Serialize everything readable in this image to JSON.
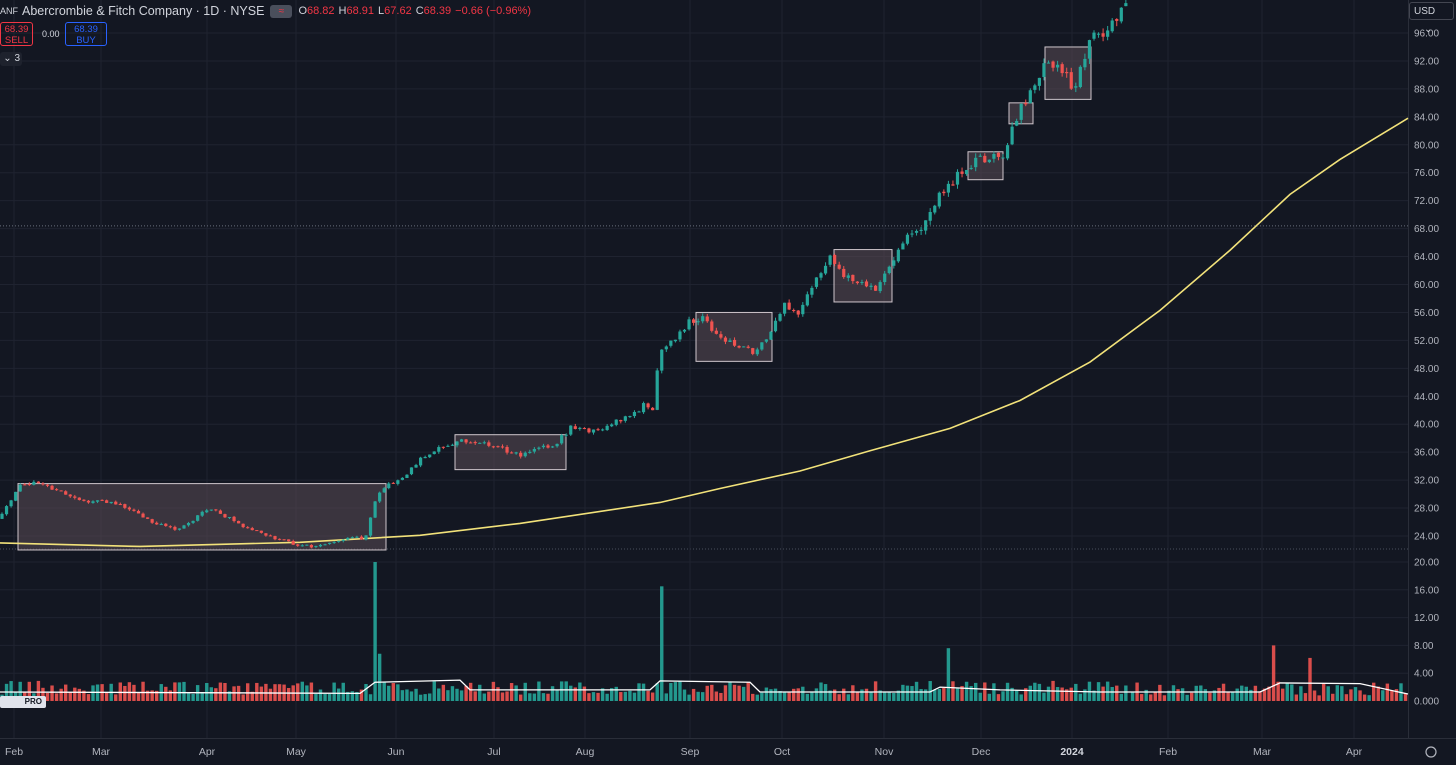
{
  "header": {
    "symbol_icon": "ANF",
    "title": "Abercrombie & Fitch Company · 1D · NYSE",
    "flag_glyph": "≈",
    "ohlc": [
      {
        "key": "O",
        "value": "68.82"
      },
      {
        "key": "H",
        "value": "68.91"
      },
      {
        "key": "L",
        "value": "67.62"
      },
      {
        "key": "C",
        "value": "68.39"
      }
    ],
    "change": "−0.66 (−0.96%)"
  },
  "trade": {
    "sell_price": "68.39",
    "sell_label": "SELL",
    "spread": "0.00",
    "buy_price": "68.39",
    "buy_label": "BUY"
  },
  "indicators_count": "3",
  "currency_button": "USD",
  "logo_text": "PRO",
  "chart_data": {
    "type": "candlestick",
    "price_axis": {
      "ticks": [
        "96.00",
        "92.00",
        "88.00",
        "84.00",
        "80.00",
        "76.00",
        "72.00",
        "68.00",
        "64.00",
        "60.00",
        "56.00",
        "52.00",
        "48.00",
        "44.00",
        "40.00",
        "36.00",
        "32.00",
        "28.00",
        "24.00"
      ],
      "range": [
        21.5,
        100
      ]
    },
    "volume_axis": {
      "ticks": [
        "20.00",
        "16.00",
        "12.00",
        "8.00",
        "4.00",
        "0.000"
      ],
      "range": [
        0,
        20
      ]
    },
    "last_price": 68.39,
    "x_labels": [
      "Feb",
      "Mar",
      "Apr",
      "May",
      "Jun",
      "Jul",
      "Aug",
      "Sep",
      "Oct",
      "Nov",
      "Dec",
      "2024",
      "Feb",
      "Mar",
      "Apr"
    ],
    "price_path": [
      [
        0,
        26.5
      ],
      [
        20,
        31.5
      ],
      [
        40,
        31.5
      ],
      [
        60,
        30.5
      ],
      [
        80,
        29
      ],
      [
        100,
        29
      ],
      [
        120,
        28.5
      ],
      [
        140,
        27
      ],
      [
        160,
        25.5
      ],
      [
        180,
        25
      ],
      [
        200,
        27
      ],
      [
        210,
        28
      ],
      [
        230,
        26.5
      ],
      [
        250,
        25
      ],
      [
        270,
        24
      ],
      [
        290,
        23
      ],
      [
        310,
        22.5
      ],
      [
        330,
        23
      ],
      [
        350,
        24
      ],
      [
        365,
        23.5
      ],
      [
        375,
        29
      ],
      [
        385,
        31
      ],
      [
        400,
        32
      ],
      [
        420,
        35
      ],
      [
        440,
        36.5
      ],
      [
        460,
        37.5
      ],
      [
        480,
        37.5
      ],
      [
        500,
        36.5
      ],
      [
        520,
        35.5
      ],
      [
        540,
        36.5
      ],
      [
        555,
        37
      ],
      [
        570,
        39.5
      ],
      [
        590,
        39
      ],
      [
        610,
        40
      ],
      [
        630,
        41
      ],
      [
        645,
        43
      ],
      [
        652,
        41
      ],
      [
        660,
        51
      ],
      [
        675,
        52
      ],
      [
        690,
        55
      ],
      [
        705,
        55
      ],
      [
        720,
        52.5
      ],
      [
        740,
        51
      ],
      [
        755,
        50
      ],
      [
        770,
        53
      ],
      [
        785,
        57
      ],
      [
        800,
        56
      ],
      [
        815,
        61
      ],
      [
        830,
        64
      ],
      [
        845,
        61
      ],
      [
        860,
        60
      ],
      [
        875,
        59.5
      ],
      [
        890,
        63
      ],
      [
        905,
        67
      ],
      [
        920,
        67.5
      ],
      [
        935,
        72
      ],
      [
        950,
        74
      ],
      [
        965,
        77
      ],
      [
        985,
        78
      ],
      [
        1005,
        79
      ],
      [
        1020,
        85
      ],
      [
        1035,
        88
      ],
      [
        1045,
        92
      ],
      [
        1060,
        91
      ],
      [
        1075,
        88
      ],
      [
        1090,
        95
      ],
      [
        1110,
        97
      ],
      [
        1128,
        100
      ]
    ],
    "sma_path": [
      [
        0,
        23
      ],
      [
        140,
        22.5
      ],
      [
        300,
        23.1
      ],
      [
        420,
        24.1
      ],
      [
        520,
        25.8
      ],
      [
        660,
        28.8
      ],
      [
        720,
        30.8
      ],
      [
        800,
        33.3
      ],
      [
        870,
        36.2
      ],
      [
        950,
        39.4
      ],
      [
        1020,
        43.4
      ],
      [
        1090,
        48.9
      ],
      [
        1160,
        56.3
      ],
      [
        1230,
        64.9
      ],
      [
        1290,
        72.9
      ],
      [
        1340,
        77.9
      ],
      [
        1408,
        83.8
      ]
    ],
    "consolidation_boxes": [
      {
        "t0": 18,
        "t1": 386,
        "p_lo": 22,
        "p_hi": 31.5
      },
      {
        "t0": 455,
        "t1": 566,
        "p_lo": 33.5,
        "p_hi": 38.5
      },
      {
        "t0": 696,
        "t1": 772,
        "p_lo": 49,
        "p_hi": 56
      },
      {
        "t0": 834,
        "t1": 892,
        "p_lo": 57.5,
        "p_hi": 65
      },
      {
        "t0": 968,
        "t1": 1003,
        "p_lo": 75,
        "p_hi": 79
      },
      {
        "t0": 1009,
        "t1": 1033,
        "p_lo": 83,
        "p_hi": 86
      },
      {
        "t0": 1045,
        "t1": 1091,
        "p_lo": 86.5,
        "p_hi": 94
      }
    ],
    "volume_spikes": [
      {
        "t": 373,
        "v": 20.0
      },
      {
        "t": 378,
        "v": 6.8
      },
      {
        "t": 658,
        "v": 16.5
      },
      {
        "t": 948,
        "v": 7.6
      },
      {
        "t": 1275,
        "v": 8.0
      },
      {
        "t": 1308,
        "v": 6.2
      }
    ],
    "volume_ma": [
      [
        0,
        1.3
      ],
      [
        360,
        1.1
      ],
      [
        375,
        2.7
      ],
      [
        460,
        3.0
      ],
      [
        470,
        1.6
      ],
      [
        650,
        1.6
      ],
      [
        660,
        2.9
      ],
      [
        750,
        2.7
      ],
      [
        760,
        1.3
      ],
      [
        930,
        1.3
      ],
      [
        940,
        2.0
      ],
      [
        1000,
        1.6
      ],
      [
        1100,
        1.3
      ],
      [
        1260,
        1.3
      ],
      [
        1280,
        2.6
      ],
      [
        1360,
        2.5
      ],
      [
        1408,
        1.0
      ]
    ],
    "colors": {
      "up": "#26a69a",
      "down": "#ef5350",
      "sma": "#f2e27a",
      "volume_ma": "#ffffff",
      "grid": "#1f2330",
      "box_fill": "#5b4c55",
      "box_stroke": "#cfc6cc",
      "background": "#131722"
    }
  }
}
